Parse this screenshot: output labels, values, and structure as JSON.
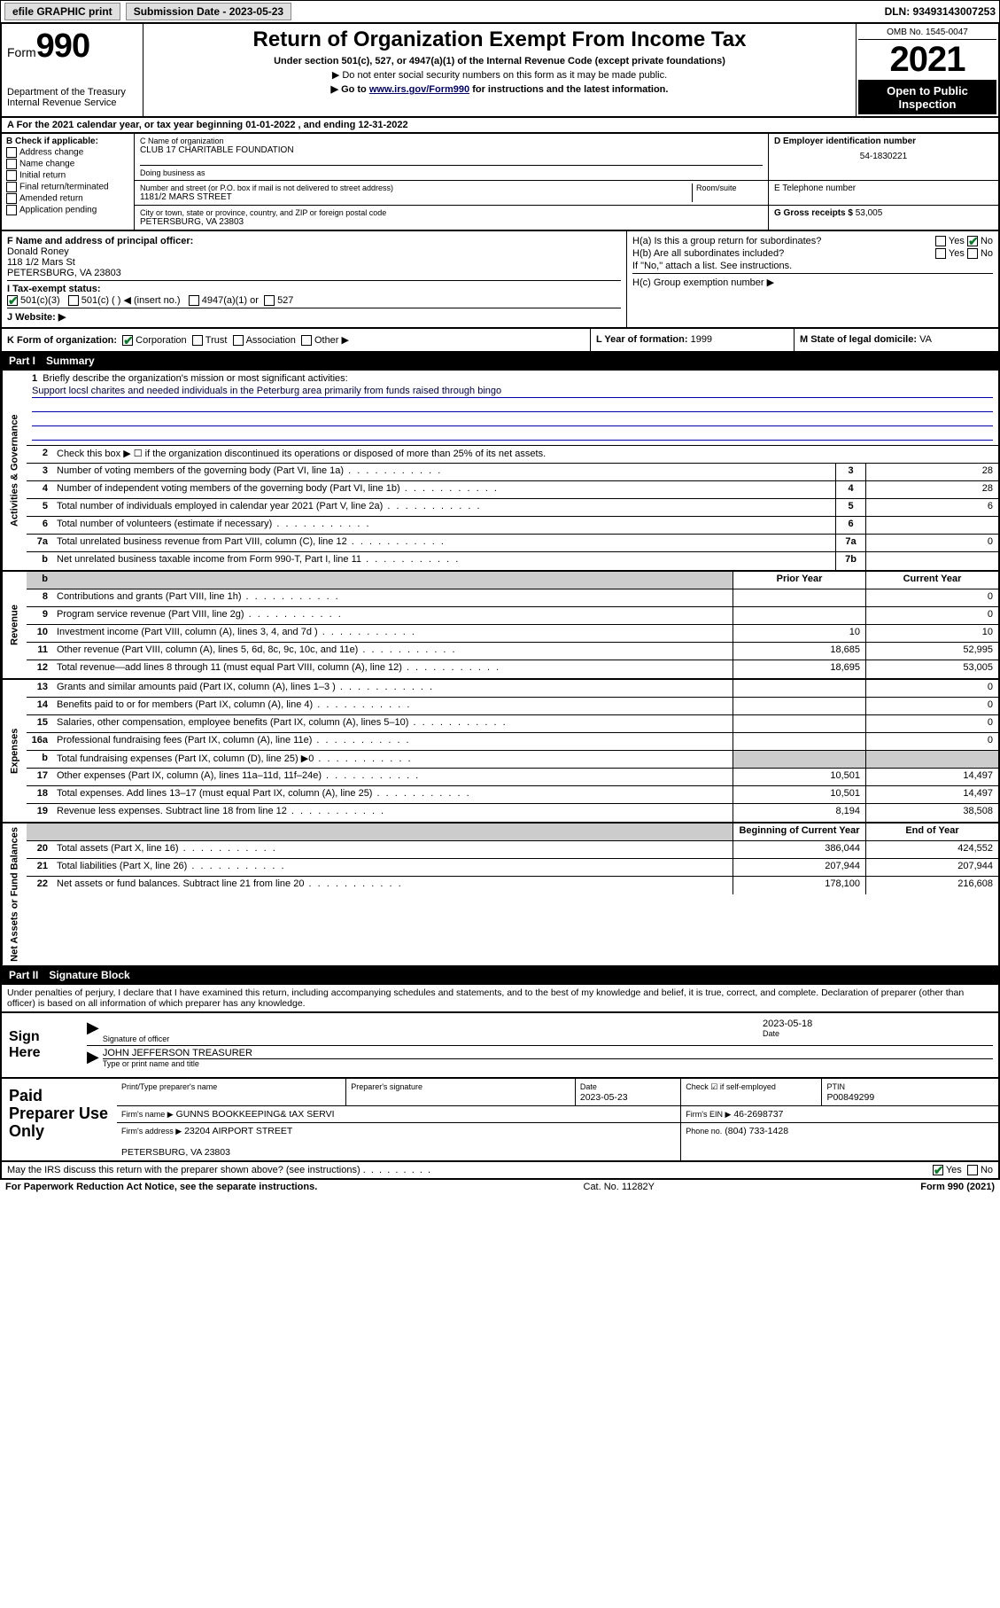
{
  "topbar": {
    "efile": "efile GRAPHIC print",
    "subdate_label": "Submission Date - 2023-05-23",
    "dln": "DLN: 93493143007253"
  },
  "header": {
    "form_label": "Form",
    "form_number": "990",
    "dept": "Department of the Treasury",
    "irs": "Internal Revenue Service",
    "title": "Return of Organization Exempt From Income Tax",
    "subtitle": "Under section 501(c), 527, or 4947(a)(1) of the Internal Revenue Code (except private foundations)",
    "note1": "▶ Do not enter social security numbers on this form as it may be made public.",
    "note2_pre": "▶ Go to ",
    "note2_link": "www.irs.gov/Form990",
    "note2_post": " for instructions and the latest information.",
    "omb": "OMB No. 1545-0047",
    "tax_year": "2021",
    "inspect": "Open to Public Inspection"
  },
  "lineA": "A For the 2021 calendar year, or tax year beginning 01-01-2022   , and ending 12-31-2022",
  "colB": {
    "label": "B Check if applicable:",
    "opts": [
      "Address change",
      "Name change",
      "Initial return",
      "Final return/terminated",
      "Amended return",
      "Application pending"
    ]
  },
  "blockC": {
    "label_c": "C Name of organization",
    "org": "CLUB 17 CHARITABLE FOUNDATION",
    "dba_label": "Doing business as",
    "dba": "",
    "addr_label": "Number and street (or P.O. box if mail is not delivered to street address)",
    "room_label": "Room/suite",
    "addr": "1181/2 MARS STREET",
    "city_label": "City or town, state or province, country, and ZIP or foreign postal code",
    "city": "PETERSBURG, VA  23803"
  },
  "blockD": {
    "label": "D Employer identification number",
    "val": "54-1830221"
  },
  "blockE": {
    "label": "E Telephone number",
    "val": ""
  },
  "blockG": {
    "label": "G Gross receipts $",
    "val": "53,005"
  },
  "blockF": {
    "label": "F  Name and address of principal officer:",
    "name": "Donald Roney",
    "addr1": "118 1/2 Mars St",
    "addr2": "PETERSBURG, VA  23803"
  },
  "blockH": {
    "a": "H(a)  Is this a group return for subordinates?",
    "b": "H(b)  Are all subordinates included?",
    "note": "If \"No,\" attach a list. See instructions.",
    "c": "H(c)  Group exemption number ▶",
    "yes": "Yes",
    "no": "No"
  },
  "blockI": {
    "label": "I   Tax-exempt status:",
    "o1": "501(c)(3)",
    "o2": "501(c) (  ) ◀ (insert no.)",
    "o3": "4947(a)(1) or",
    "o4": "527"
  },
  "blockJ": {
    "label": "J   Website: ▶",
    "val": ""
  },
  "blockK": {
    "label": "K Form of organization:",
    "o1": "Corporation",
    "o2": "Trust",
    "o3": "Association",
    "o4": "Other ▶"
  },
  "blockL": {
    "label": "L Year of formation:",
    "val": "1999"
  },
  "blockM": {
    "label": "M State of legal domicile:",
    "val": "VA"
  },
  "part1": {
    "num": "Part I",
    "title": "Summary"
  },
  "summary": {
    "gov_label": "Activities & Governance",
    "rev_label": "Revenue",
    "exp_label": "Expenses",
    "net_label": "Net Assets or Fund Balances",
    "line1_label": "Briefly describe the organization's mission or most significant activities:",
    "line1_text": "Support locsl charites and needed individuals in the Peterburg area primarily from funds raised through bingo",
    "line2": "Check this box ▶ ☐  if the organization discontinued its operations or disposed of more than 25% of its net assets.",
    "prior_hdr": "Prior Year",
    "curr_hdr": "Current Year",
    "beg_hdr": "Beginning of Current Year",
    "end_hdr": "End of Year",
    "rows_gov": [
      {
        "n": "3",
        "t": "Number of voting members of the governing body (Part VI, line 1a)",
        "box": "3",
        "v": "28"
      },
      {
        "n": "4",
        "t": "Number of independent voting members of the governing body (Part VI, line 1b)",
        "box": "4",
        "v": "28"
      },
      {
        "n": "5",
        "t": "Total number of individuals employed in calendar year 2021 (Part V, line 2a)",
        "box": "5",
        "v": "6"
      },
      {
        "n": "6",
        "t": "Total number of volunteers (estimate if necessary)",
        "box": "6",
        "v": ""
      },
      {
        "n": "7a",
        "t": "Total unrelated business revenue from Part VIII, column (C), line 12",
        "box": "7a",
        "v": "0"
      },
      {
        "n": "b",
        "t": "Net unrelated business taxable income from Form 990-T, Part I, line 11",
        "box": "7b",
        "v": ""
      }
    ],
    "rows_rev": [
      {
        "n": "8",
        "t": "Contributions and grants (Part VIII, line 1h)",
        "p": "",
        "c": "0"
      },
      {
        "n": "9",
        "t": "Program service revenue (Part VIII, line 2g)",
        "p": "",
        "c": "0"
      },
      {
        "n": "10",
        "t": "Investment income (Part VIII, column (A), lines 3, 4, and 7d )",
        "p": "10",
        "c": "10"
      },
      {
        "n": "11",
        "t": "Other revenue (Part VIII, column (A), lines 5, 6d, 8c, 9c, 10c, and 11e)",
        "p": "18,685",
        "c": "52,995"
      },
      {
        "n": "12",
        "t": "Total revenue—add lines 8 through 11 (must equal Part VIII, column (A), line 12)",
        "p": "18,695",
        "c": "53,005"
      }
    ],
    "rows_exp": [
      {
        "n": "13",
        "t": "Grants and similar amounts paid (Part IX, column (A), lines 1–3 )",
        "p": "",
        "c": "0"
      },
      {
        "n": "14",
        "t": "Benefits paid to or for members (Part IX, column (A), line 4)",
        "p": "",
        "c": "0"
      },
      {
        "n": "15",
        "t": "Salaries, other compensation, employee benefits (Part IX, column (A), lines 5–10)",
        "p": "",
        "c": "0"
      },
      {
        "n": "16a",
        "t": "Professional fundraising fees (Part IX, column (A), line 11e)",
        "p": "",
        "c": "0"
      },
      {
        "n": "b",
        "t": "Total fundraising expenses (Part IX, column (D), line 25) ▶0",
        "p": "grey",
        "c": "grey"
      },
      {
        "n": "17",
        "t": "Other expenses (Part IX, column (A), lines 11a–11d, 11f–24e)",
        "p": "10,501",
        "c": "14,497"
      },
      {
        "n": "18",
        "t": "Total expenses. Add lines 13–17 (must equal Part IX, column (A), line 25)",
        "p": "10,501",
        "c": "14,497"
      },
      {
        "n": "19",
        "t": "Revenue less expenses. Subtract line 18 from line 12",
        "p": "8,194",
        "c": "38,508"
      }
    ],
    "rows_net": [
      {
        "n": "20",
        "t": "Total assets (Part X, line 16)",
        "p": "386,044",
        "c": "424,552"
      },
      {
        "n": "21",
        "t": "Total liabilities (Part X, line 26)",
        "p": "207,944",
        "c": "207,944"
      },
      {
        "n": "22",
        "t": "Net assets or fund balances. Subtract line 21 from line 20",
        "p": "178,100",
        "c": "216,608"
      }
    ]
  },
  "part2": {
    "num": "Part II",
    "title": "Signature Block"
  },
  "sigdecl": "Under penalties of perjury, I declare that I have examined this return, including accompanying schedules and statements, and to the best of my knowledge and belief, it is true, correct, and complete. Declaration of preparer (other than officer) is based on all information of which preparer has any knowledge.",
  "sign": {
    "label": "Sign Here",
    "sig_label": "Signature of officer",
    "date_label": "Date",
    "date": "2023-05-18",
    "name": "JOHN JEFFERSON  TREASURER",
    "name_label": "Type or print name and title"
  },
  "paid": {
    "label": "Paid Preparer Use Only",
    "h_name": "Print/Type preparer's name",
    "h_sig": "Preparer's signature",
    "h_date": "Date",
    "date": "2023-05-23",
    "h_check": "Check ☑ if self-employed",
    "h_ptin": "PTIN",
    "ptin": "P00849299",
    "firm_label": "Firm's name    ▶",
    "firm": "GUNNS BOOKKEEPING& tAX SERVI",
    "ein_label": "Firm's EIN ▶",
    "ein": "46-2698737",
    "addr_label": "Firm's address ▶",
    "addr1": "23204 AIRPORT STREET",
    "addr2": "PETERSBURG, VA  23803",
    "phone_label": "Phone no.",
    "phone": "(804) 733-1428"
  },
  "discuss": {
    "text": "May the IRS discuss this return with the preparer shown above? (see instructions)",
    "yes": "Yes",
    "no": "No"
  },
  "footer": {
    "left": "For Paperwork Reduction Act Notice, see the separate instructions.",
    "mid": "Cat. No. 11282Y",
    "right": "Form 990 (2021)"
  },
  "colors": {
    "check_green": "#0a7a2a",
    "link_blue": "#004488",
    "grey_cell": "#cccccc"
  }
}
